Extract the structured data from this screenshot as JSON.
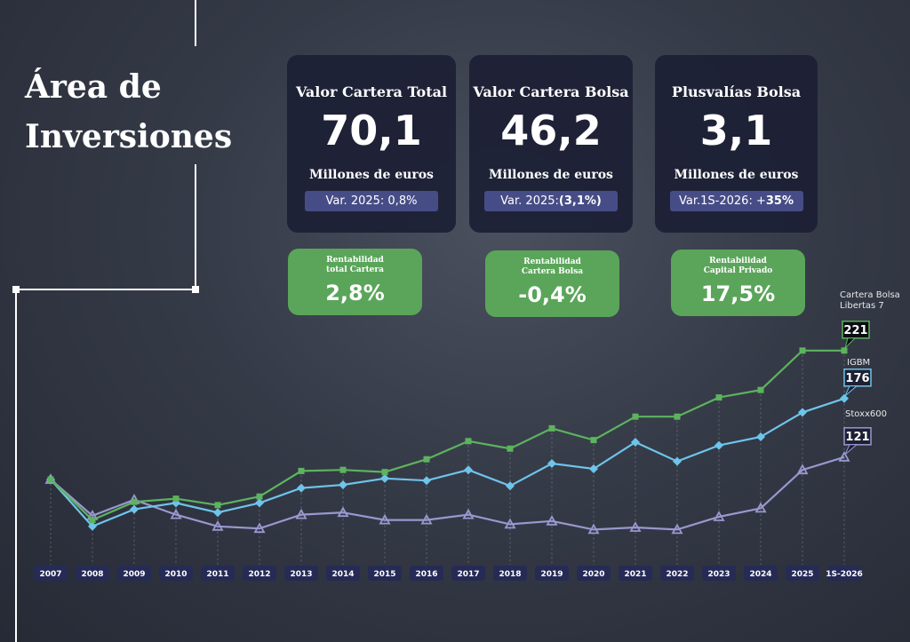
{
  "header": {
    "title": "Área de Inversiones"
  },
  "cards": [
    {
      "title": "Valor Cartera Total",
      "value": "70,1",
      "unit": "Millones de euros",
      "var": {
        "text": "Var. 2025: 0,8%",
        "strong": null
      }
    },
    {
      "title": "Valor Cartera Bolsa",
      "value": "46,2",
      "unit": "Millones de euros",
      "var": {
        "text": "Var. 2025:",
        "strong": "(3,1%)"
      }
    },
    {
      "title": "Plusvalías Bolsa",
      "value": "3,1",
      "unit": "Millones de euros",
      "var": {
        "text": "Var.1S-2026: +",
        "strong": "35%"
      }
    }
  ],
  "returns": [
    {
      "label": "Rentabilidad total Cartera",
      "value": "2,8%"
    },
    {
      "label": "Rentabilidad Cartera Bolsa",
      "value": "-0,4%"
    },
    {
      "label": "Rentabilidad Capital Privado",
      "value": "17,5%"
    }
  ],
  "chart_data": {
    "type": "line",
    "categories": [
      "2007",
      "2008",
      "2009",
      "2010",
      "2011",
      "2012",
      "2013",
      "2014",
      "2015",
      "2016",
      "2017",
      "2018",
      "2019",
      "2020",
      "2021",
      "2022",
      "2023",
      "2024",
      "2025",
      "1S-2026"
    ],
    "ylim": [
      40,
      240
    ],
    "series": [
      {
        "name": "Cartera Bolsa Libertas 7",
        "color": "#5db35e",
        "marker": "square",
        "values": [
          100,
          62,
          79,
          82,
          76,
          84,
          108,
          109,
          107,
          119,
          136,
          129,
          148,
          137,
          159,
          159,
          177,
          184,
          221,
          221
        ]
      },
      {
        "name": "IGBM",
        "color": "#6ec4ea",
        "marker": "diamond",
        "values": [
          100,
          56,
          72,
          78,
          69,
          78,
          92,
          95,
          101,
          99,
          109,
          94,
          115,
          110,
          135,
          117,
          132,
          140,
          163,
          176
        ]
      },
      {
        "name": "Stoxx600",
        "color": "#9a97cf",
        "marker": "triangle",
        "values": [
          100,
          66,
          81,
          67,
          56,
          54,
          67,
          69,
          62,
          62,
          67,
          58,
          61,
          53,
          55,
          53,
          65,
          73,
          109,
          121
        ]
      }
    ]
  }
}
